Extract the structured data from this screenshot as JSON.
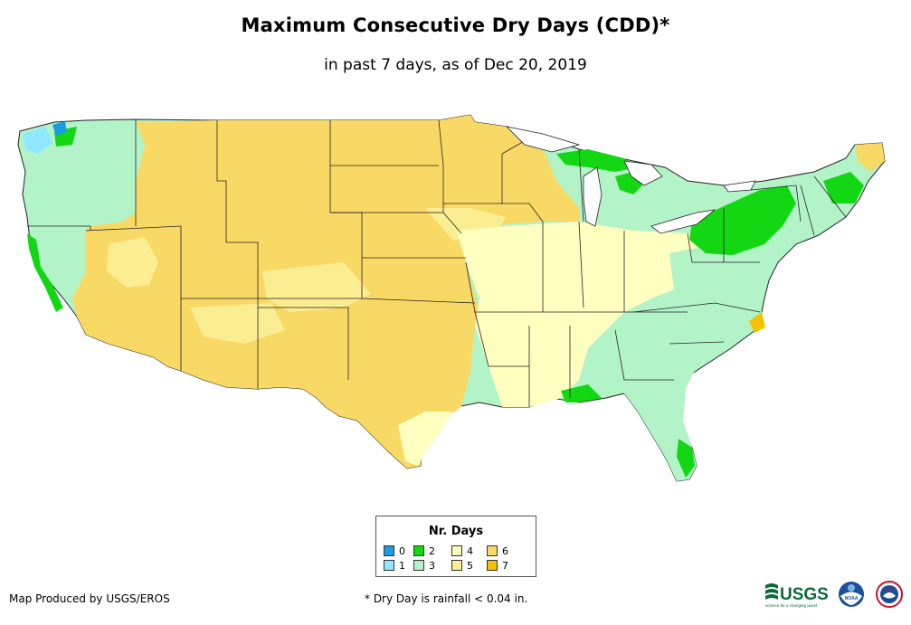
{
  "map": {
    "title": "Maximum Consecutive Dry Days (CDD)*",
    "subtitle": "in past 7 days, as of Dec 20, 2019",
    "region": "Contiguous United States"
  },
  "legend": {
    "title": "Nr. Days",
    "items": [
      {
        "label": "0",
        "color": "#1b9be0"
      },
      {
        "label": "1",
        "color": "#8fe8ff"
      },
      {
        "label": "2",
        "color": "#12d712"
      },
      {
        "label": "3",
        "color": "#b3f3c8"
      },
      {
        "label": "4",
        "color": "#ffffc0"
      },
      {
        "label": "5",
        "color": "#fbed92"
      },
      {
        "label": "6",
        "color": "#f9d965"
      },
      {
        "label": "7",
        "color": "#f6c000"
      }
    ]
  },
  "footer": {
    "credit": "Map Produced by USGS/EROS",
    "note": "* Dry Day is rainfall < 0.04 in."
  },
  "logos": {
    "usgs": "USGS",
    "usgs_tagline": "science for a changing world",
    "noaa": "NOAA"
  }
}
